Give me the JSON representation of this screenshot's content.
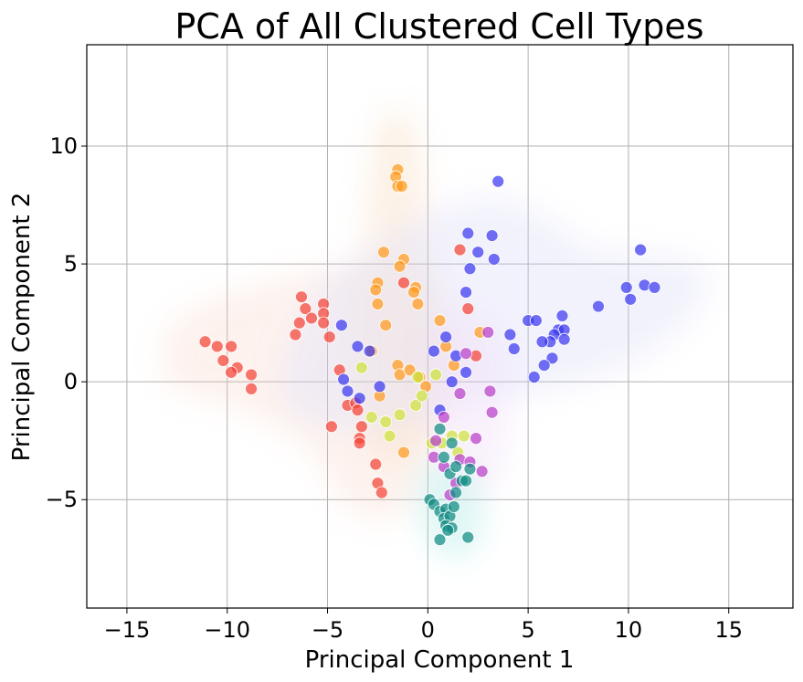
{
  "chart_data": {
    "type": "scatter",
    "title": "PCA of All Clustered Cell Types",
    "xlabel": "Principal Component 1",
    "ylabel": "Principal Component 2",
    "xlim": [
      -17,
      18.2
    ],
    "ylim": [
      -9.6,
      14.3
    ],
    "xticks": [
      -15,
      -10,
      -5,
      0,
      5,
      10,
      15
    ],
    "yticks": [
      -5,
      0,
      5,
      10
    ],
    "grid": true,
    "legend": "none",
    "series": [
      {
        "color": "#f44336",
        "points": [
          [
            -11.1,
            1.7
          ],
          [
            -10.5,
            1.5
          ],
          [
            -10.2,
            0.9
          ],
          [
            -9.8,
            1.5
          ],
          [
            -9.5,
            0.6
          ],
          [
            -9.8,
            0.4
          ],
          [
            -8.8,
            0.3
          ],
          [
            -8.8,
            -0.3
          ],
          [
            -6.3,
            3.6
          ],
          [
            -6.1,
            3.1
          ],
          [
            -5.2,
            3.3
          ],
          [
            -5.2,
            2.9
          ],
          [
            -5.8,
            2.7
          ],
          [
            -6.4,
            2.5
          ],
          [
            -6.6,
            2.0
          ],
          [
            -5.2,
            2.5
          ],
          [
            -4.9,
            1.9
          ],
          [
            -4.4,
            0.5
          ],
          [
            -4.0,
            -1.0
          ],
          [
            -3.6,
            -0.9
          ],
          [
            -3.5,
            -1.2
          ],
          [
            -3.3,
            -1.9
          ],
          [
            -3.4,
            -2.4
          ],
          [
            -3.4,
            -2.6
          ],
          [
            -4.8,
            -1.9
          ],
          [
            -2.6,
            -3.5
          ],
          [
            -2.5,
            -4.3
          ],
          [
            -2.3,
            -4.7
          ],
          [
            1.6,
            5.6
          ],
          [
            2.0,
            3.1
          ],
          [
            2.4,
            1.1
          ],
          [
            -1.2,
            4.2
          ]
        ]
      },
      {
        "color": "#ff9a1f",
        "points": [
          [
            -1.5,
            9.0
          ],
          [
            -1.6,
            8.7
          ],
          [
            -1.5,
            8.3
          ],
          [
            -1.3,
            8.3
          ],
          [
            -2.2,
            5.5
          ],
          [
            -1.2,
            5.2
          ],
          [
            -1.4,
            4.9
          ],
          [
            -2.5,
            4.2
          ],
          [
            -2.6,
            3.9
          ],
          [
            -2.5,
            3.3
          ],
          [
            -0.6,
            4.0
          ],
          [
            -0.5,
            3.3
          ],
          [
            -0.7,
            3.8
          ],
          [
            -2.1,
            2.4
          ],
          [
            -2.8,
            1.3
          ],
          [
            -1.5,
            0.7
          ],
          [
            -1.4,
            0.3
          ],
          [
            -0.9,
            0.5
          ],
          [
            -0.4,
            0.2
          ],
          [
            -0.1,
            -0.2
          ],
          [
            0.6,
            2.6
          ],
          [
            0.9,
            1.5
          ],
          [
            2.6,
            2.1
          ],
          [
            1.3,
            0.7
          ],
          [
            -1.2,
            -3.0
          ],
          [
            -2.4,
            -0.6
          ]
        ]
      },
      {
        "color": "#3a38f0",
        "points": [
          [
            3.5,
            8.5
          ],
          [
            2.0,
            6.3
          ],
          [
            3.2,
            6.2
          ],
          [
            2.5,
            5.5
          ],
          [
            3.3,
            5.2
          ],
          [
            2.1,
            4.8
          ],
          [
            1.9,
            3.8
          ],
          [
            10.6,
            5.6
          ],
          [
            9.9,
            4.0
          ],
          [
            10.8,
            4.1
          ],
          [
            11.3,
            4.0
          ],
          [
            10.1,
            3.5
          ],
          [
            8.5,
            3.2
          ],
          [
            5.0,
            2.6
          ],
          [
            5.4,
            2.6
          ],
          [
            6.5,
            2.2
          ],
          [
            6.8,
            2.2
          ],
          [
            6.3,
            2.0
          ],
          [
            6.1,
            1.7
          ],
          [
            5.7,
            1.7
          ],
          [
            6.8,
            1.8
          ],
          [
            6.7,
            2.8
          ],
          [
            4.1,
            2.0
          ],
          [
            4.3,
            1.4
          ],
          [
            6.2,
            1.0
          ],
          [
            5.8,
            0.7
          ],
          [
            5.3,
            0.2
          ],
          [
            -4.3,
            2.4
          ],
          [
            -3.5,
            1.5
          ],
          [
            -2.9,
            1.3
          ],
          [
            -4.2,
            0.1
          ],
          [
            -4.0,
            -0.4
          ],
          [
            -3.4,
            -0.7
          ],
          [
            -2.4,
            -0.2
          ],
          [
            0.3,
            1.3
          ],
          [
            0.9,
            1.9
          ],
          [
            1.4,
            1.1
          ],
          [
            1.9,
            0.4
          ],
          [
            1.2,
            0.0
          ],
          [
            0.6,
            -1.2
          ]
        ]
      },
      {
        "color": "#cfe23b",
        "points": [
          [
            -3.3,
            0.6
          ],
          [
            -2.8,
            -1.5
          ],
          [
            -2.1,
            -1.7
          ],
          [
            -1.4,
            -1.4
          ],
          [
            -0.6,
            -1.0
          ],
          [
            -0.3,
            -0.6
          ],
          [
            0.2,
            -2.6
          ],
          [
            0.7,
            -2.6
          ],
          [
            1.2,
            -2.3
          ],
          [
            1.5,
            -3.0
          ],
          [
            1.8,
            -2.3
          ],
          [
            -0.5,
            0.2
          ],
          [
            0.4,
            0.3
          ],
          [
            -1.9,
            -2.3
          ]
        ]
      },
      {
        "color": "#b93fc9",
        "points": [
          [
            3.0,
            2.1
          ],
          [
            3.1,
            -0.4
          ],
          [
            3.2,
            -1.3
          ],
          [
            2.7,
            -3.8
          ],
          [
            2.4,
            -2.4
          ],
          [
            1.9,
            1.2
          ],
          [
            1.6,
            -0.5
          ],
          [
            0.8,
            -1.5
          ],
          [
            1.6,
            -3.3
          ],
          [
            2.1,
            -3.4
          ],
          [
            0.4,
            -2.5
          ],
          [
            0.3,
            -3.2
          ],
          [
            1.1,
            -4.8
          ],
          [
            1.4,
            -4.3
          ],
          [
            0.8,
            -3.6
          ]
        ]
      },
      {
        "color": "#0f8a82",
        "points": [
          [
            0.1,
            -5.0
          ],
          [
            0.3,
            -5.2
          ],
          [
            0.6,
            -5.5
          ],
          [
            0.9,
            -5.4
          ],
          [
            0.8,
            -5.8
          ],
          [
            1.1,
            -5.7
          ],
          [
            1.3,
            -5.3
          ],
          [
            0.9,
            -6.1
          ],
          [
            1.2,
            -6.2
          ],
          [
            1.0,
            -6.3
          ],
          [
            0.6,
            -6.7
          ],
          [
            2.0,
            -6.6
          ],
          [
            1.4,
            -4.7
          ],
          [
            1.7,
            -4.2
          ],
          [
            1.1,
            -3.9
          ],
          [
            0.8,
            -3.2
          ],
          [
            1.4,
            -3.6
          ],
          [
            2.1,
            -3.7
          ],
          [
            1.2,
            -2.6
          ],
          [
            0.6,
            -2.0
          ],
          [
            1.9,
            -4.2
          ]
        ]
      }
    ]
  }
}
